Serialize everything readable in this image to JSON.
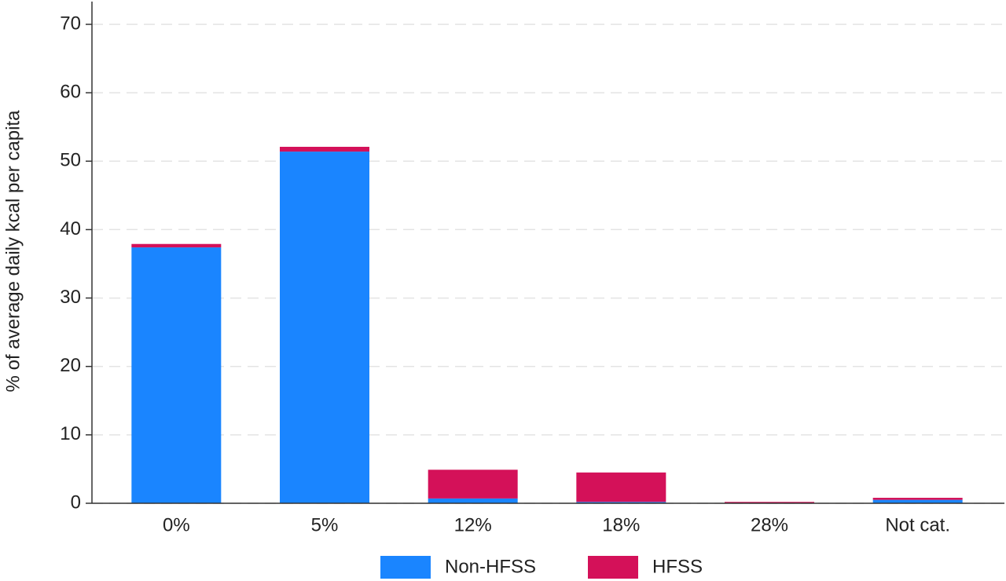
{
  "chart_data": {
    "type": "stacked-bar",
    "y_label": "% of average daily kcal per capita",
    "categories": [
      "0%",
      "5%",
      "12%",
      "18%",
      "28%",
      "Not cat."
    ],
    "series": [
      {
        "name": "Non-HFSS",
        "color": "#1a85ff",
        "values": [
          37.4,
          51.4,
          0.7,
          0.2,
          0.0,
          0.5
        ]
      },
      {
        "name": "HFSS",
        "color": "#d41159",
        "values": [
          0.5,
          0.7,
          4.2,
          4.3,
          0.2,
          0.3
        ]
      }
    ],
    "ylim": [
      0,
      70
    ],
    "yticks": [
      0,
      10,
      20,
      30,
      40,
      50,
      60,
      70
    ],
    "grid": true,
    "legend": "bottom"
  }
}
